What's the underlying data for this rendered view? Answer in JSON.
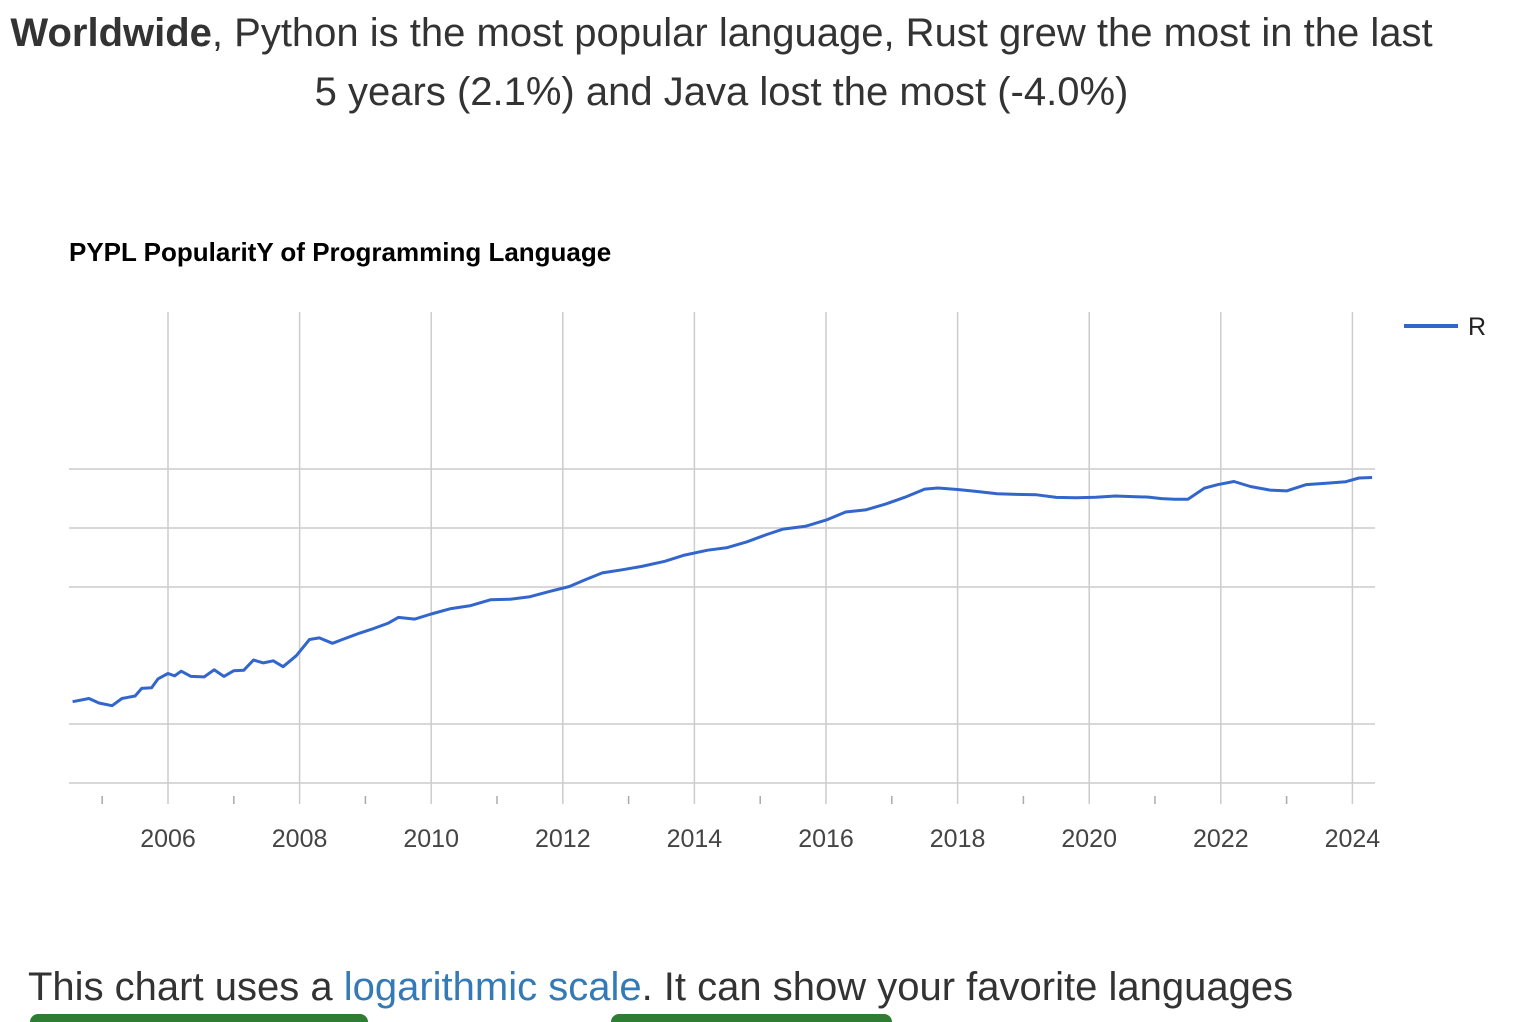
{
  "headline": {
    "bold": "Worldwide",
    "rest": ", Python is the most popular language, Rust grew the most in the last 5 years (2.1%) and Java lost the most (-4.0%)"
  },
  "footer": {
    "prefix": "This chart uses a ",
    "link": "logarithmic scale",
    "suffix": ". It can show your favorite languages"
  },
  "chart_data": {
    "type": "line",
    "title": "PYPL PopularitY of Programming Language",
    "xlabel": "",
    "ylabel": "",
    "y_scale": "log",
    "grid": true,
    "legend_position": "top-right",
    "xlim": [
      2004.5,
      2024.4
    ],
    "ylim": [
      0.06,
      4.0
    ],
    "x_ticks": [
      "2006",
      "2008",
      "2010",
      "2012",
      "2014",
      "2016",
      "2018",
      "2020",
      "2022",
      "2024"
    ],
    "series": [
      {
        "name": "R",
        "color": "#3366cc",
        "points": [
          [
            2004.55,
            0.13
          ],
          [
            2004.8,
            0.135
          ],
          [
            2004.95,
            0.128
          ],
          [
            2005.15,
            0.124
          ],
          [
            2005.3,
            0.135
          ],
          [
            2005.5,
            0.139
          ],
          [
            2005.6,
            0.152
          ],
          [
            2005.75,
            0.153
          ],
          [
            2005.85,
            0.17
          ],
          [
            2006.0,
            0.181
          ],
          [
            2006.1,
            0.176
          ],
          [
            2006.2,
            0.186
          ],
          [
            2006.35,
            0.175
          ],
          [
            2006.55,
            0.174
          ],
          [
            2006.7,
            0.189
          ],
          [
            2006.85,
            0.175
          ],
          [
            2007.0,
            0.187
          ],
          [
            2007.15,
            0.188
          ],
          [
            2007.3,
            0.212
          ],
          [
            2007.45,
            0.205
          ],
          [
            2007.6,
            0.21
          ],
          [
            2007.75,
            0.196
          ],
          [
            2007.95,
            0.223
          ],
          [
            2008.15,
            0.27
          ],
          [
            2008.3,
            0.275
          ],
          [
            2008.5,
            0.258
          ],
          [
            2008.65,
            0.27
          ],
          [
            2008.9,
            0.29
          ],
          [
            2009.1,
            0.305
          ],
          [
            2009.35,
            0.327
          ],
          [
            2009.5,
            0.35
          ],
          [
            2009.75,
            0.343
          ],
          [
            2010.0,
            0.364
          ],
          [
            2010.3,
            0.388
          ],
          [
            2010.6,
            0.402
          ],
          [
            2010.9,
            0.43
          ],
          [
            2011.2,
            0.433
          ],
          [
            2011.5,
            0.446
          ],
          [
            2011.8,
            0.475
          ],
          [
            2012.1,
            0.503
          ],
          [
            2012.35,
            0.546
          ],
          [
            2012.6,
            0.59
          ],
          [
            2012.9,
            0.612
          ],
          [
            2013.2,
            0.637
          ],
          [
            2013.55,
            0.676
          ],
          [
            2013.85,
            0.727
          ],
          [
            2014.2,
            0.77
          ],
          [
            2014.5,
            0.794
          ],
          [
            2014.8,
            0.85
          ],
          [
            2015.1,
            0.926
          ],
          [
            2015.35,
            0.987
          ],
          [
            2015.7,
            1.022
          ],
          [
            2016.0,
            1.097
          ],
          [
            2016.3,
            1.207
          ],
          [
            2016.6,
            1.237
          ],
          [
            2016.9,
            1.322
          ],
          [
            2017.2,
            1.436
          ],
          [
            2017.5,
            1.579
          ],
          [
            2017.7,
            1.599
          ],
          [
            2018.0,
            1.571
          ],
          [
            2018.3,
            1.535
          ],
          [
            2018.6,
            1.496
          ],
          [
            2018.9,
            1.484
          ],
          [
            2019.2,
            1.477
          ],
          [
            2019.5,
            1.433
          ],
          [
            2019.8,
            1.426
          ],
          [
            2020.1,
            1.435
          ],
          [
            2020.4,
            1.456
          ],
          [
            2020.6,
            1.448
          ],
          [
            2020.9,
            1.438
          ],
          [
            2021.1,
            1.413
          ],
          [
            2021.3,
            1.401
          ],
          [
            2021.5,
            1.403
          ],
          [
            2021.75,
            1.597
          ],
          [
            2021.95,
            1.664
          ],
          [
            2022.2,
            1.727
          ],
          [
            2022.45,
            1.629
          ],
          [
            2022.75,
            1.56
          ],
          [
            2023.0,
            1.547
          ],
          [
            2023.3,
            1.666
          ],
          [
            2023.6,
            1.69
          ],
          [
            2023.9,
            1.722
          ],
          [
            2024.1,
            1.799
          ],
          [
            2024.3,
            1.809
          ]
        ]
      }
    ]
  }
}
